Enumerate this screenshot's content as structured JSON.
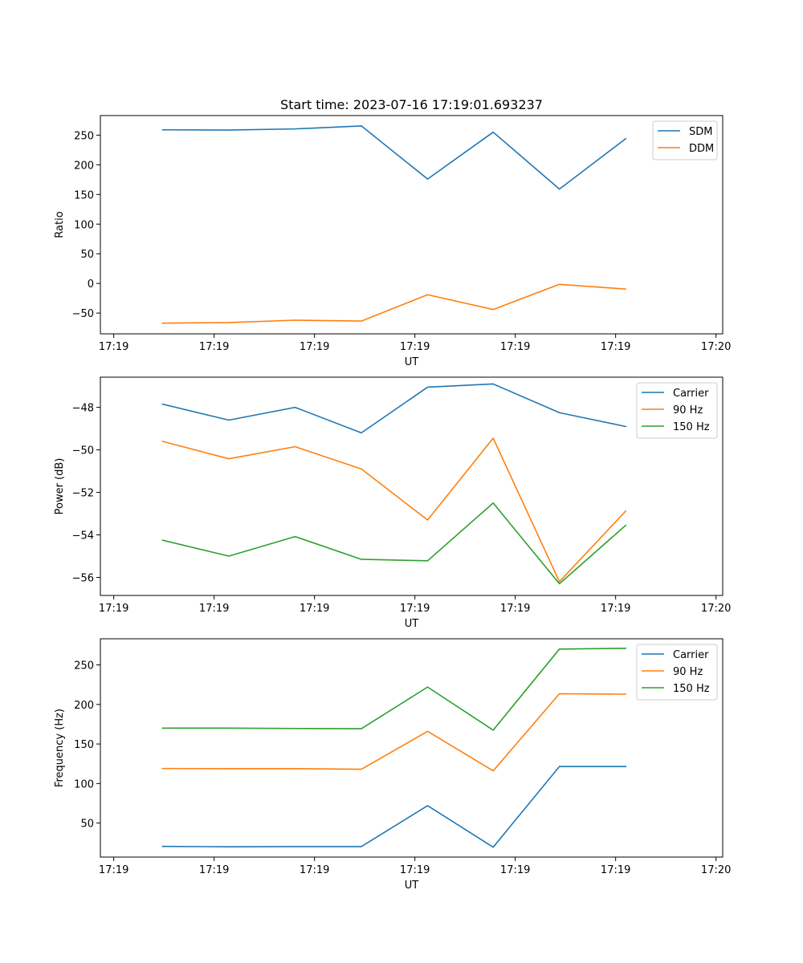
{
  "chart_data": [
    {
      "type": "line",
      "title": "Start time: 2023-07-16 17:19:01.693237",
      "xlabel": "UT",
      "ylabel": "Ratio",
      "xlim": [
        0,
        9.3
      ],
      "ylim": [
        -85,
        283
      ],
      "x_ticks": [
        0.2,
        1.7,
        3.2,
        4.7,
        6.2,
        7.7,
        9.2
      ],
      "x_tick_labels": [
        "17:19",
        "17:19",
        "17:19",
        "17:19",
        "17:19",
        "17:19",
        "17:20"
      ],
      "y_ticks": [
        -50,
        0,
        50,
        100,
        150,
        200,
        250
      ],
      "y_tick_labels": [
        "−50",
        "0",
        "50",
        "100",
        "150",
        "200",
        "250"
      ],
      "x": [
        0.93,
        1.92,
        2.91,
        3.9,
        4.89,
        5.87,
        6.86,
        7.85
      ],
      "series": [
        {
          "name": "SDM",
          "color": "#1f77b4",
          "values": [
            259,
            258.5,
            260.5,
            265.5,
            176,
            255,
            159,
            244
          ]
        },
        {
          "name": "DDM",
          "color": "#ff7f0e",
          "values": [
            -67,
            -66,
            -62,
            -63.5,
            -19,
            -44,
            -1.5,
            -9.5
          ]
        }
      ],
      "legend": "top-right"
    },
    {
      "type": "line",
      "title": "",
      "xlabel": "UT",
      "ylabel": "Power (dB)",
      "xlim": [
        0,
        9.3
      ],
      "ylim": [
        -56.85,
        -46.58
      ],
      "x_ticks": [
        0.2,
        1.7,
        3.2,
        4.7,
        6.2,
        7.7,
        9.2
      ],
      "x_tick_labels": [
        "17:19",
        "17:19",
        "17:19",
        "17:19",
        "17:19",
        "17:19",
        "17:20"
      ],
      "y_ticks": [
        -56,
        -54,
        -52,
        -50,
        -48
      ],
      "y_tick_labels": [
        "−56",
        "−54",
        "−52",
        "−50",
        "−48"
      ],
      "x": [
        0.93,
        1.92,
        2.91,
        3.9,
        4.89,
        5.87,
        6.86,
        7.85
      ],
      "series": [
        {
          "name": "Carrier",
          "color": "#1f77b4",
          "values": [
            -47.85,
            -48.6,
            -48.0,
            -49.2,
            -47.05,
            -46.9,
            -48.25,
            -48.9
          ]
        },
        {
          "name": "90 Hz",
          "color": "#ff7f0e",
          "values": [
            -49.6,
            -50.42,
            -49.85,
            -50.9,
            -53.3,
            -49.45,
            -56.2,
            -52.88
          ]
        },
        {
          "name": "150 Hz",
          "color": "#2ca02c",
          "values": [
            -54.25,
            -55.0,
            -54.08,
            -55.15,
            -55.22,
            -52.5,
            -56.3,
            -53.55
          ]
        }
      ],
      "legend": "top-right"
    },
    {
      "type": "line",
      "title": "",
      "xlabel": "UT",
      "ylabel": "Frequency (Hz)",
      "xlim": [
        0,
        9.3
      ],
      "ylim": [
        7,
        283
      ],
      "x_ticks": [
        0.2,
        1.7,
        3.2,
        4.7,
        6.2,
        7.7,
        9.2
      ],
      "x_tick_labels": [
        "17:19",
        "17:19",
        "17:19",
        "17:19",
        "17:19",
        "17:19",
        "17:20"
      ],
      "y_ticks": [
        50,
        100,
        150,
        200,
        250
      ],
      "y_tick_labels": [
        "50",
        "100",
        "150",
        "200",
        "250"
      ],
      "x": [
        0.93,
        1.92,
        2.91,
        3.9,
        4.89,
        5.87,
        6.86,
        7.85
      ],
      "series": [
        {
          "name": "Carrier",
          "color": "#1f77b4",
          "values": [
            20.5,
            20,
            20.3,
            20.3,
            72,
            19.5,
            121.5,
            121.5
          ]
        },
        {
          "name": "90 Hz",
          "color": "#ff7f0e",
          "values": [
            119,
            118.8,
            118.8,
            118,
            166,
            116,
            213.5,
            213
          ]
        },
        {
          "name": "150 Hz",
          "color": "#2ca02c",
          "values": [
            170,
            170,
            169.6,
            169.3,
            222,
            167.5,
            270,
            271
          ]
        }
      ],
      "legend": "top-right"
    }
  ]
}
